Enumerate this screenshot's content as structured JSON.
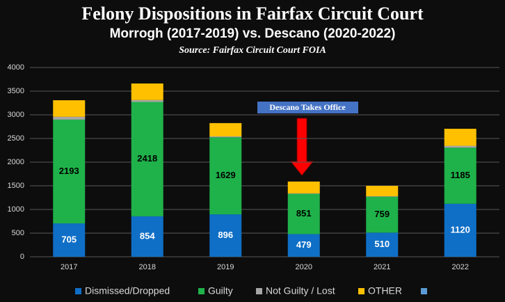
{
  "chart_data": {
    "type": "stacked_bar",
    "title": "Felony Dispositions in Fairfax Circuit Court",
    "subtitle": "Morrogh (2017-2019) vs. Descano (2020-2022)",
    "source": "Source: Fairfax Circuit Court FOIA",
    "annotation": "Descano Takes Office",
    "categories": [
      "2017",
      "2018",
      "2019",
      "2020",
      "2021",
      "2022"
    ],
    "series": [
      {
        "name": "Dismissed/Dropped",
        "color": "#0f6fc6",
        "label_color": "#ffffff",
        "data_labels": true,
        "values": [
          705,
          854,
          896,
          479,
          510,
          1120
        ]
      },
      {
        "name": "Guilty",
        "color": "#1fb24a",
        "label_color": "#000000",
        "data_labels": true,
        "values": [
          2193,
          2418,
          1629,
          851,
          759,
          1185
        ]
      },
      {
        "name": "Not Guilty / Lost",
        "color": "#a6a6a6",
        "data_labels": false,
        "values": [
          60,
          40,
          20,
          10,
          10,
          40
        ]
      },
      {
        "name": "OTHER",
        "color": "#ffc000",
        "data_labels": false,
        "values": [
          350,
          350,
          280,
          250,
          220,
          360
        ]
      }
    ],
    "ylim": [
      0,
      4000
    ],
    "yticks": [
      0,
      500,
      1000,
      1500,
      2000,
      2500,
      3000,
      3500,
      4000
    ],
    "grid": true
  }
}
